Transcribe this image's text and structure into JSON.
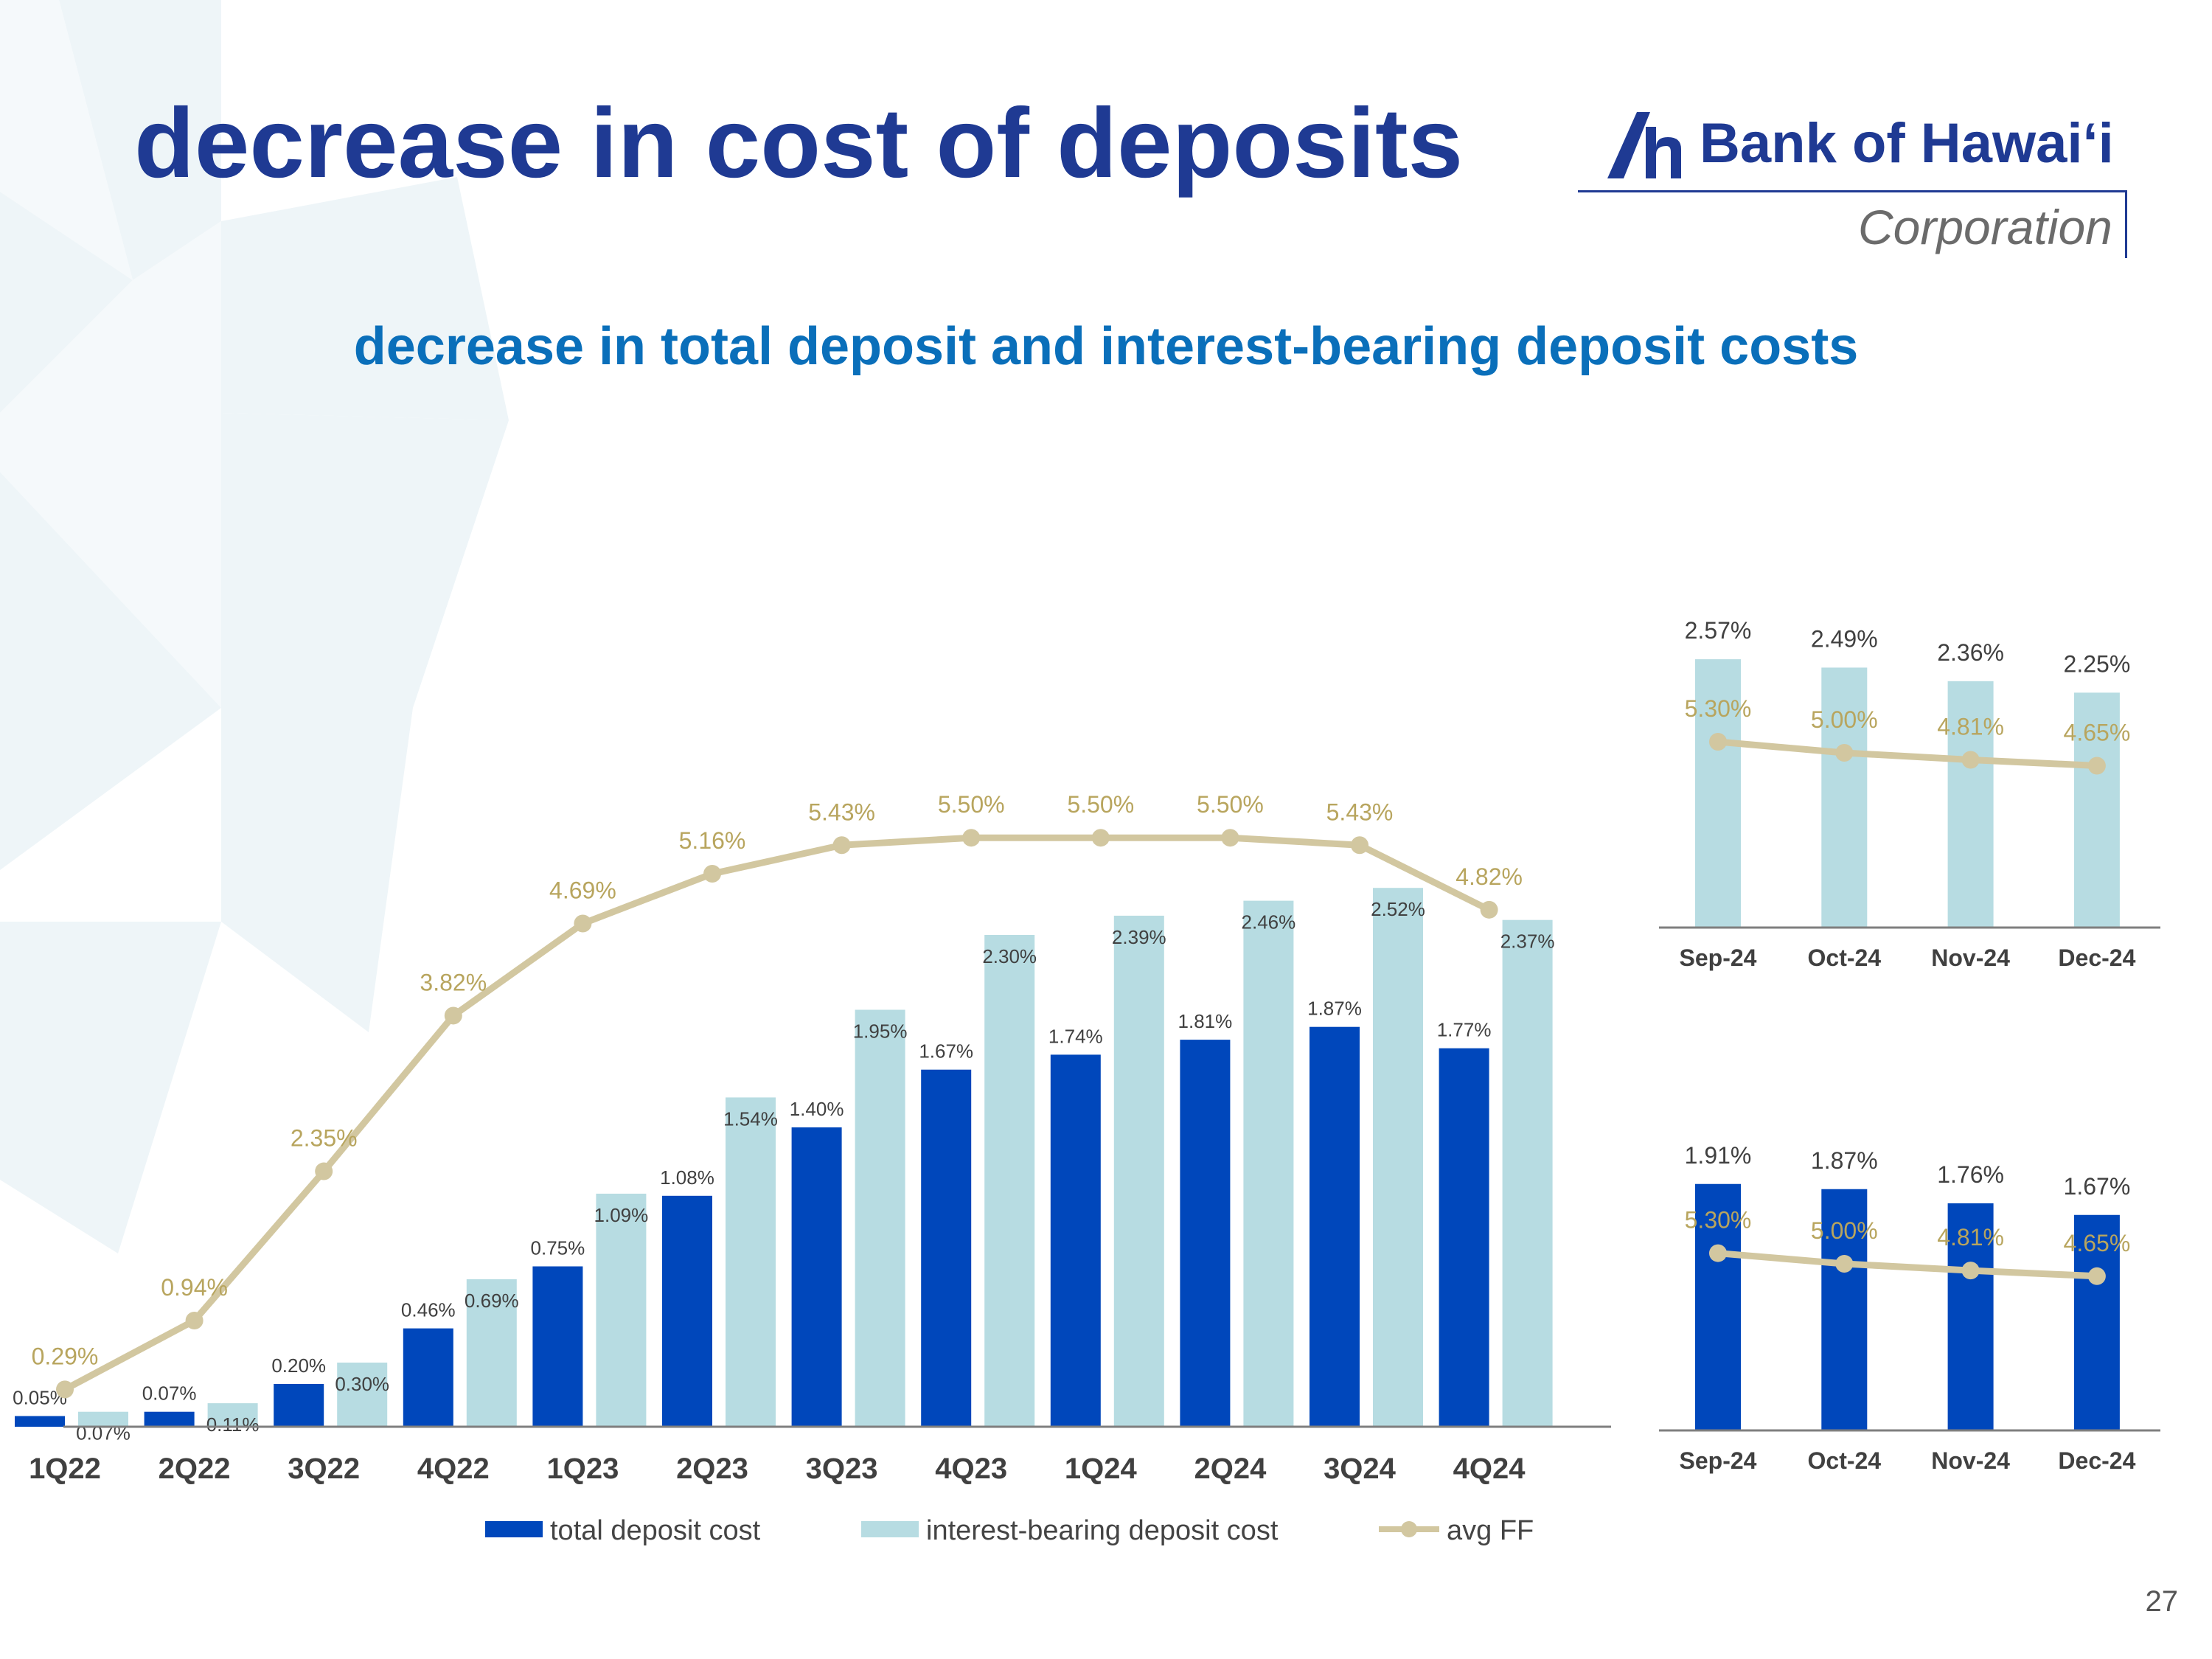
{
  "slide": {
    "title": "decrease in cost of deposits",
    "subtitle": "decrease in total deposit and interest-bearing deposit costs",
    "page_number": "27"
  },
  "logo": {
    "name": "Bank of Hawaiʻi",
    "sub": "Corporation"
  },
  "colors": {
    "total_deposit": "#0047bb",
    "interest_bearing": "#b7dce2",
    "avg_ff": "#d2c7a0",
    "ff_label": "#b8a55e",
    "title": "#1f3a93",
    "subtitle": "#0a6fba"
  },
  "legend": {
    "total": "total deposit cost",
    "interest": "interest-bearing deposit cost",
    "ff": "avg FF"
  },
  "chart_data": [
    {
      "type": "bar",
      "categories": [
        "1Q22",
        "2Q22",
        "3Q22",
        "4Q22",
        "1Q23",
        "2Q23",
        "3Q23",
        "4Q23",
        "1Q24",
        "2Q24",
        "3Q24",
        "4Q24"
      ],
      "series": [
        {
          "name": "total deposit cost",
          "kind": "bar",
          "values": [
            0.05,
            0.07,
            0.2,
            0.46,
            0.75,
            1.08,
            1.4,
            1.67,
            1.74,
            1.81,
            1.87,
            1.77
          ],
          "labels": [
            "0.05%",
            "0.07%",
            "0.20%",
            "0.46%",
            "0.75%",
            "1.08%",
            "1.40%",
            "1.67%",
            "1.74%",
            "1.81%",
            "1.87%",
            "1.77%"
          ]
        },
        {
          "name": "interest-bearing deposit cost",
          "kind": "bar",
          "values": [
            0.07,
            0.11,
            0.3,
            0.69,
            1.09,
            1.54,
            1.95,
            2.3,
            2.39,
            2.46,
            2.52,
            2.37
          ],
          "labels": [
            "0.07%",
            "0.11%",
            "0.30%",
            "0.69%",
            "1.09%",
            "1.54%",
            "1.95%",
            "2.30%",
            "2.39%",
            "2.46%",
            "2.52%",
            "2.37%"
          ]
        },
        {
          "name": "avg FF",
          "kind": "line",
          "values": [
            0.29,
            0.94,
            2.35,
            3.82,
            4.69,
            5.16,
            5.43,
            5.5,
            5.5,
            5.5,
            5.43,
            4.82
          ],
          "labels": [
            "0.29%",
            "0.94%",
            "2.35%",
            "3.82%",
            "4.69%",
            "5.16%",
            "5.43%",
            "5.50%",
            "5.50%",
            "5.50%",
            "5.43%",
            "4.82%"
          ]
        }
      ],
      "legend_position": "bottom",
      "grid": false
    },
    {
      "type": "bar",
      "categories": [
        "Sep-24",
        "Oct-24",
        "Nov-24",
        "Dec-24"
      ],
      "series": [
        {
          "name": "interest-bearing deposit cost",
          "kind": "bar",
          "values": [
            2.57,
            2.49,
            2.36,
            2.25
          ],
          "labels": [
            "2.57%",
            "2.49%",
            "2.36%",
            "2.25%"
          ]
        },
        {
          "name": "avg FF",
          "kind": "line",
          "values": [
            5.3,
            5.0,
            4.81,
            4.65
          ],
          "labels": [
            "5.30%",
            "5.00%",
            "4.81%",
            "4.65%"
          ]
        }
      ],
      "grid": false
    },
    {
      "type": "bar",
      "categories": [
        "Sep-24",
        "Oct-24",
        "Nov-24",
        "Dec-24"
      ],
      "series": [
        {
          "name": "total deposit cost",
          "kind": "bar",
          "values": [
            1.91,
            1.87,
            1.76,
            1.67
          ],
          "labels": [
            "1.91%",
            "1.87%",
            "1.76%",
            "1.67%"
          ]
        },
        {
          "name": "avg FF",
          "kind": "line",
          "values": [
            5.3,
            5.0,
            4.81,
            4.65
          ],
          "labels": [
            "5.30%",
            "5.00%",
            "4.81%",
            "4.65%"
          ]
        }
      ],
      "grid": false
    }
  ]
}
